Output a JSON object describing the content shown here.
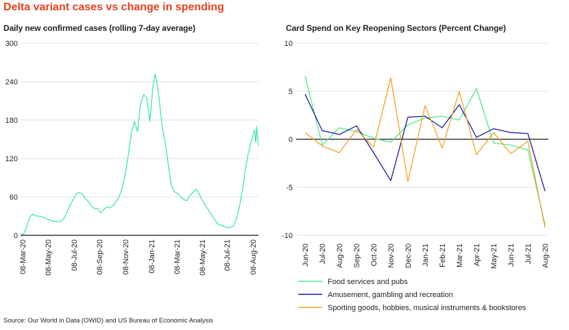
{
  "title": "Delta variant cases vs change in spending",
  "source": "Source: Our World in Data (OWID) and US Bureau of Economic Analysis",
  "colors": {
    "title": "#e8401c",
    "cases": "#3ee6b0",
    "food": "#50e68a",
    "amusement": "#1a1a9e",
    "sporting": "#f5a020",
    "grid": "#d9d9d9",
    "zero": "#111111"
  },
  "chart_data": [
    {
      "type": "line",
      "title": "Daily new confirmed cases (rolling 7-day average)",
      "xlabel": "",
      "ylabel": "",
      "ylim": [
        0,
        300
      ],
      "yticks": [
        0,
        60,
        120,
        180,
        240,
        300
      ],
      "xlim": [
        "2020-03-08",
        "2021-08-31"
      ],
      "xticks": [
        "08-Mar-20",
        "08-May-20",
        "08-Jul-20",
        "08-Sep-20",
        "08-Nov-20",
        "08-Jan-21",
        "08-Mar-21",
        "08-May-21",
        "08-Jul-21",
        "08-Aug-20"
      ],
      "grid": true,
      "series": [
        {
          "color": "cases",
          "points": [
            [
              "2020-03-08",
              1
            ],
            [
              "2020-03-15",
              2
            ],
            [
              "2020-03-22",
              14
            ],
            [
              "2020-03-29",
              29
            ],
            [
              "2020-04-05",
              33
            ],
            [
              "2020-04-12",
              30
            ],
            [
              "2020-04-19",
              30
            ],
            [
              "2020-04-26",
              29
            ],
            [
              "2020-05-03",
              27
            ],
            [
              "2020-05-10",
              25
            ],
            [
              "2020-05-17",
              23
            ],
            [
              "2020-05-24",
              22
            ],
            [
              "2020-05-31",
              21
            ],
            [
              "2020-06-07",
              22
            ],
            [
              "2020-06-14",
              26
            ],
            [
              "2020-06-21",
              35
            ],
            [
              "2020-06-28",
              46
            ],
            [
              "2020-07-05",
              55
            ],
            [
              "2020-07-12",
              64
            ],
            [
              "2020-07-19",
              67
            ],
            [
              "2020-07-26",
              65
            ],
            [
              "2020-08-02",
              58
            ],
            [
              "2020-08-09",
              53
            ],
            [
              "2020-08-16",
              46
            ],
            [
              "2020-08-23",
              42
            ],
            [
              "2020-08-30",
              42
            ],
            [
              "2020-09-06",
              35
            ],
            [
              "2020-09-13",
              40
            ],
            [
              "2020-09-20",
              44
            ],
            [
              "2020-09-27",
              43
            ],
            [
              "2020-10-04",
              46
            ],
            [
              "2020-10-11",
              52
            ],
            [
              "2020-10-18",
              60
            ],
            [
              "2020-10-25",
              74
            ],
            [
              "2020-11-01",
              95
            ],
            [
              "2020-11-08",
              125
            ],
            [
              "2020-11-15",
              160
            ],
            [
              "2020-11-22",
              178
            ],
            [
              "2020-11-29",
              162
            ],
            [
              "2020-12-06",
              205
            ],
            [
              "2020-12-13",
              220
            ],
            [
              "2020-12-20",
              215
            ],
            [
              "2020-12-27",
              178
            ],
            [
              "2021-01-03",
              232
            ],
            [
              "2021-01-08",
              252
            ],
            [
              "2021-01-12",
              240
            ],
            [
              "2021-01-17",
              215
            ],
            [
              "2021-01-24",
              170
            ],
            [
              "2021-01-31",
              145
            ],
            [
              "2021-02-07",
              110
            ],
            [
              "2021-02-14",
              78
            ],
            [
              "2021-02-21",
              68
            ],
            [
              "2021-02-28",
              65
            ],
            [
              "2021-03-07",
              60
            ],
            [
              "2021-03-14",
              56
            ],
            [
              "2021-03-21",
              54
            ],
            [
              "2021-03-28",
              62
            ],
            [
              "2021-04-04",
              67
            ],
            [
              "2021-04-11",
              72
            ],
            [
              "2021-04-18",
              65
            ],
            [
              "2021-04-25",
              55
            ],
            [
              "2021-05-02",
              47
            ],
            [
              "2021-05-09",
              40
            ],
            [
              "2021-05-16",
              32
            ],
            [
              "2021-05-23",
              25
            ],
            [
              "2021-05-30",
              18
            ],
            [
              "2021-06-06",
              16
            ],
            [
              "2021-06-13",
              14
            ],
            [
              "2021-06-20",
              12
            ],
            [
              "2021-06-27",
              12
            ],
            [
              "2021-07-04",
              14
            ],
            [
              "2021-07-11",
              24
            ],
            [
              "2021-07-18",
              42
            ],
            [
              "2021-07-25",
              68
            ],
            [
              "2021-08-01",
              102
            ],
            [
              "2021-08-08",
              128
            ],
            [
              "2021-08-15",
              148
            ],
            [
              "2021-08-19",
              157
            ],
            [
              "2021-08-22",
              165
            ],
            [
              "2021-08-25",
              145
            ],
            [
              "2021-08-27",
              170
            ],
            [
              "2021-08-29",
              155
            ],
            [
              "2021-08-31",
              140
            ]
          ]
        }
      ]
    },
    {
      "type": "line",
      "title": "Card Spend on Key Reopening Sectors (Percent Change)",
      "xlabel": "",
      "ylabel": "",
      "ylim": [
        -10,
        10
      ],
      "yticks": [
        -10,
        -5,
        0,
        5,
        10
      ],
      "categories": [
        "Jun-20",
        "Jul-20",
        "Aug-20",
        "Sep-20",
        "Oct-20",
        "Nov-20",
        "Dec-20",
        "Jan-21",
        "Feb-21",
        "Mar-21",
        "Apr-21",
        "May-21",
        "Jun-21",
        "Jul-21",
        "Aug-20"
      ],
      "grid": true,
      "legend_position": "bottom",
      "series": [
        {
          "name": "Food services and pubs",
          "color": "food",
          "values": [
            6.6,
            -0.6,
            1.2,
            0.8,
            0.1,
            -0.3,
            1.5,
            2.2,
            2.4,
            2.0,
            5.3,
            -0.4,
            -0.6,
            -1.1,
            -8.9
          ]
        },
        {
          "name": "Amusement, gambling and recreation",
          "color": "amusement",
          "values": [
            4.7,
            0.9,
            0.5,
            1.4,
            -1.4,
            -4.3,
            2.3,
            2.4,
            1.2,
            3.6,
            0.2,
            1.1,
            0.7,
            0.6,
            -5.4
          ]
        },
        {
          "name": "Sporting goods, hobbies, musical instruments & bookstores",
          "color": "sporting",
          "values": [
            0.7,
            -0.7,
            -1.4,
            1.0,
            -0.8,
            6.4,
            -4.4,
            3.5,
            -0.9,
            5.0,
            -1.6,
            0.7,
            -1.5,
            -0.2,
            -9.2
          ]
        }
      ]
    }
  ]
}
